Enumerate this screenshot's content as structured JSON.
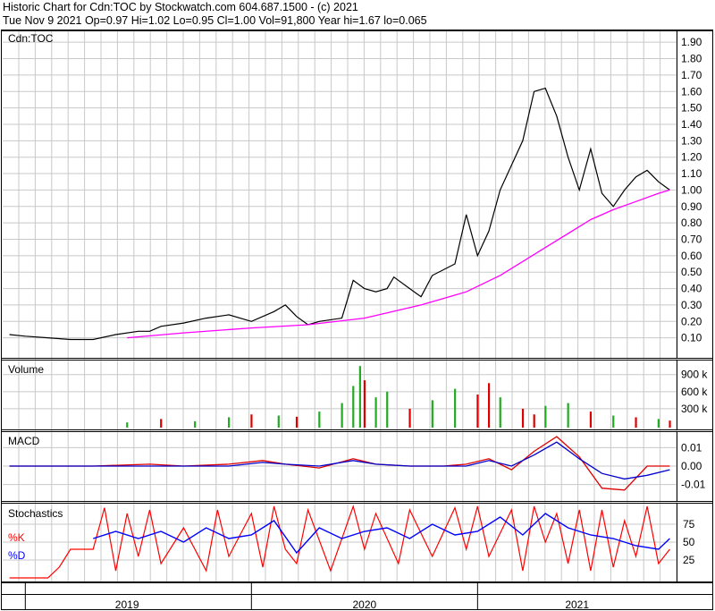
{
  "header": {
    "line1": "Historic Chart for Cdn:TOC by Stockwatch.com 604.687.1500 - (c) 2021",
    "line2": "Tue Nov  9 2021  Op=0.97  Hi=1.02  Lo=0.95  Cl=1.00  Vol=91,800  Year hi=1.67  lo=0.065"
  },
  "colors": {
    "price": "#000000",
    "moving_average": "#ff00ff",
    "volume_up": "#22aa22",
    "volume_down": "#dd0000",
    "macd": "#dd0000",
    "signal": "#0000cc",
    "stoch_k": "#ff0000",
    "stoch_d": "#0000ff",
    "grid": "#c8c8c8"
  },
  "chart_data": [
    {
      "type": "line",
      "panel": "price",
      "title": "Cdn:TOC",
      "ylim": [
        0,
        1.95
      ],
      "yticks": [
        "1.90",
        "1.80",
        "1.70",
        "1.60",
        "1.50",
        "1.40",
        "1.30",
        "1.20",
        "1.10",
        "1.00",
        "0.90",
        "0.80",
        "0.70",
        "0.60",
        "0.50",
        "0.40",
        "0.30",
        "0.20",
        "0.10"
      ],
      "x_years": [
        "2019",
        "2020",
        "2021"
      ],
      "series": [
        {
          "role": "price",
          "x": [
            2018.93,
            2019.0,
            2019.1,
            2019.2,
            2019.3,
            2019.4,
            2019.5,
            2019.55,
            2019.6,
            2019.7,
            2019.8,
            2019.9,
            2020.0,
            2020.1,
            2020.15,
            2020.2,
            2020.25,
            2020.3,
            2020.4,
            2020.45,
            2020.5,
            2020.55,
            2020.6,
            2020.63,
            2020.7,
            2020.75,
            2020.8,
            2020.9,
            2020.95,
            2021.0,
            2021.05,
            2021.1,
            2021.2,
            2021.25,
            2021.3,
            2021.35,
            2021.4,
            2021.45,
            2021.5,
            2021.55,
            2021.6,
            2021.65,
            2021.7,
            2021.75,
            2021.8,
            2021.85
          ],
          "y": [
            0.12,
            0.11,
            0.1,
            0.09,
            0.09,
            0.12,
            0.14,
            0.14,
            0.17,
            0.19,
            0.22,
            0.24,
            0.2,
            0.26,
            0.3,
            0.23,
            0.18,
            0.2,
            0.22,
            0.45,
            0.4,
            0.38,
            0.4,
            0.47,
            0.4,
            0.35,
            0.48,
            0.55,
            0.85,
            0.6,
            0.75,
            1.0,
            1.3,
            1.6,
            1.62,
            1.45,
            1.2,
            1.0,
            1.25,
            0.98,
            0.9,
            1.0,
            1.08,
            1.12,
            1.05,
            1.0
          ]
        },
        {
          "role": "moving_average",
          "x": [
            2019.45,
            2019.7,
            2020.0,
            2020.25,
            2020.5,
            2020.75,
            2020.95,
            2021.1,
            2021.3,
            2021.5,
            2021.6,
            2021.7,
            2021.8,
            2021.85
          ],
          "y": [
            0.1,
            0.13,
            0.16,
            0.18,
            0.22,
            0.3,
            0.38,
            0.48,
            0.65,
            0.82,
            0.88,
            0.93,
            0.98,
            1.0
          ]
        }
      ]
    },
    {
      "type": "bar",
      "panel": "volume",
      "title": "Volume",
      "ylim": [
        0,
        1100000
      ],
      "yticks": [
        "900 k",
        "600 k",
        "300 k"
      ],
      "x": [
        2019.45,
        2019.6,
        2019.75,
        2019.9,
        2020.0,
        2020.12,
        2020.2,
        2020.3,
        2020.4,
        2020.45,
        2020.48,
        2020.5,
        2020.55,
        2020.6,
        2020.7,
        2020.8,
        2020.9,
        2021.0,
        2021.05,
        2021.1,
        2021.2,
        2021.25,
        2021.3,
        2021.4,
        2021.5,
        2021.6,
        2021.7,
        2021.8,
        2021.85
      ],
      "values": [
        60000,
        120000,
        80000,
        150000,
        200000,
        180000,
        160000,
        250000,
        400000,
        700000,
        1050000,
        800000,
        500000,
        600000,
        300000,
        450000,
        650000,
        550000,
        750000,
        500000,
        300000,
        200000,
        350000,
        400000,
        250000,
        180000,
        150000,
        120000,
        91800
      ],
      "up": [
        true,
        false,
        true,
        true,
        false,
        true,
        false,
        true,
        true,
        true,
        true,
        false,
        true,
        true,
        false,
        true,
        true,
        false,
        false,
        true,
        false,
        false,
        true,
        true,
        false,
        true,
        false,
        true,
        false
      ]
    },
    {
      "type": "line",
      "panel": "macd",
      "title": "MACD",
      "ylim": [
        -0.017,
        0.017
      ],
      "yticks": [
        "0.01",
        "0.00",
        "-0.01"
      ],
      "series": [
        {
          "role": "macd",
          "x": [
            2018.93,
            2019.3,
            2019.55,
            2019.7,
            2019.9,
            2020.05,
            2020.15,
            2020.3,
            2020.45,
            2020.55,
            2020.7,
            2020.85,
            2020.95,
            2021.05,
            2021.15,
            2021.25,
            2021.35,
            2021.45,
            2021.55,
            2021.65,
            2021.75,
            2021.85
          ],
          "y": [
            0.0,
            0.0,
            0.001,
            0.0,
            0.001,
            0.003,
            0.001,
            -0.001,
            0.004,
            0.001,
            0.0,
            0.0,
            0.001,
            0.004,
            -0.002,
            0.008,
            0.016,
            0.005,
            -0.012,
            -0.013,
            0.0,
            0.0
          ]
        },
        {
          "role": "signal",
          "x": [
            2018.93,
            2019.3,
            2019.55,
            2019.7,
            2019.9,
            2020.05,
            2020.15,
            2020.3,
            2020.45,
            2020.55,
            2020.7,
            2020.85,
            2020.95,
            2021.05,
            2021.15,
            2021.25,
            2021.35,
            2021.45,
            2021.55,
            2021.65,
            2021.75,
            2021.85
          ],
          "y": [
            0.0,
            0.0,
            0.0,
            0.0,
            0.0,
            0.002,
            0.001,
            0.0,
            0.003,
            0.001,
            0.0,
            0.0,
            0.0,
            0.003,
            0.0,
            0.006,
            0.013,
            0.004,
            -0.004,
            -0.007,
            -0.005,
            -0.002
          ]
        }
      ]
    },
    {
      "type": "line",
      "panel": "stochastics",
      "title": "Stochastics",
      "legend": [
        "%K",
        "%D"
      ],
      "ylim": [
        0,
        100
      ],
      "yticks": [
        "75",
        "50",
        "25"
      ],
      "series": [
        {
          "role": "stoch_k",
          "x": [
            2018.93,
            2019.05,
            2019.1,
            2019.15,
            2019.2,
            2019.3,
            2019.35,
            2019.4,
            2019.45,
            2019.5,
            2019.55,
            2019.6,
            2019.7,
            2019.8,
            2019.85,
            2019.9,
            2020.0,
            2020.05,
            2020.1,
            2020.15,
            2020.2,
            2020.25,
            2020.35,
            2020.45,
            2020.5,
            2020.55,
            2020.65,
            2020.7,
            2020.8,
            2020.9,
            2020.95,
            2021.0,
            2021.05,
            2021.15,
            2021.2,
            2021.25,
            2021.3,
            2021.35,
            2021.4,
            2021.45,
            2021.5,
            2021.55,
            2021.6,
            2021.65,
            2021.7,
            2021.75,
            2021.8,
            2021.85
          ],
          "y": [
            0,
            0,
            0,
            15,
            40,
            40,
            98,
            10,
            90,
            30,
            95,
            20,
            70,
            10,
            95,
            30,
            90,
            15,
            100,
            40,
            20,
            95,
            10,
            100,
            40,
            90,
            20,
            95,
            30,
            98,
            40,
            100,
            30,
            95,
            10,
            100,
            50,
            90,
            20,
            95,
            10,
            95,
            15,
            80,
            30,
            100,
            20,
            40
          ]
        },
        {
          "role": "stoch_d",
          "x": [
            2019.3,
            2019.4,
            2019.5,
            2019.6,
            2019.7,
            2019.8,
            2019.9,
            2020.0,
            2020.1,
            2020.2,
            2020.3,
            2020.4,
            2020.5,
            2020.6,
            2020.7,
            2020.8,
            2020.9,
            2021.0,
            2021.1,
            2021.2,
            2021.3,
            2021.4,
            2021.5,
            2021.6,
            2021.7,
            2021.8,
            2021.85
          ],
          "y": [
            55,
            65,
            55,
            65,
            50,
            70,
            55,
            60,
            80,
            35,
            70,
            55,
            65,
            70,
            55,
            75,
            60,
            65,
            85,
            60,
            90,
            70,
            60,
            55,
            45,
            40,
            55
          ]
        }
      ]
    }
  ]
}
